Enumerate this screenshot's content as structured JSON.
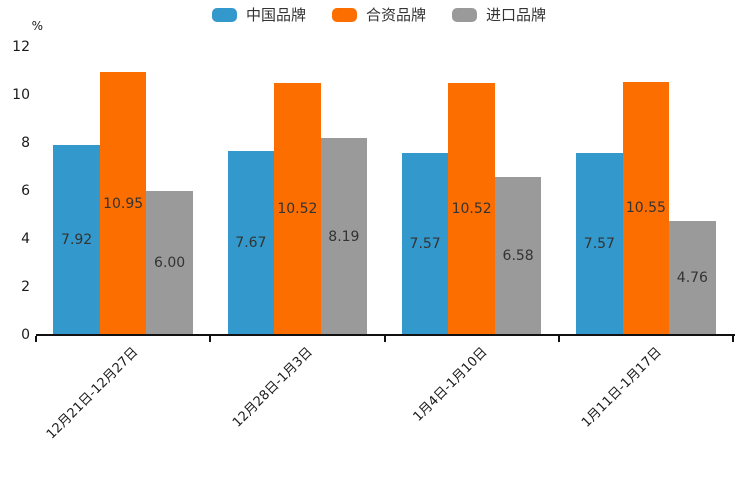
{
  "chart_data": {
    "type": "bar",
    "title": "",
    "unit_label": "%",
    "categories": [
      "12月21日-12月27日",
      "12月28日-1月3日",
      "1月4日-1月10日",
      "1月11日-1月17日"
    ],
    "series": [
      {
        "name": "中国品牌",
        "key": "china-brand",
        "color": "#3398cb",
        "values": [
          7.92,
          7.67,
          7.57,
          7.57
        ]
      },
      {
        "name": "合资品牌",
        "key": "joint-venture-brand",
        "color": "#fd6e01",
        "values": [
          10.95,
          10.52,
          10.52,
          10.55
        ]
      },
      {
        "name": "进口品牌",
        "key": "imported-brand",
        "color": "#9a9a9a",
        "values": [
          6.0,
          8.19,
          6.58,
          4.76
        ]
      }
    ],
    "value_labels": [
      [
        "7.92",
        "10.95",
        "6.00"
      ],
      [
        "7.67",
        "10.52",
        "8.19"
      ],
      [
        "7.57",
        "10.52",
        "6.58"
      ],
      [
        "7.57",
        "10.55",
        "4.76"
      ]
    ],
    "y_ticks": [
      0,
      2,
      4,
      6,
      8,
      10,
      12
    ],
    "ylim": [
      0,
      12
    ],
    "grid": false,
    "legend_position": "top",
    "x_label_rotation_deg": 45,
    "colors": {
      "axis": "#111111",
      "tick_label": "#1a1a1a",
      "value_label": "#333333",
      "legend_text": "#333333",
      "background": "#ffffff"
    }
  }
}
